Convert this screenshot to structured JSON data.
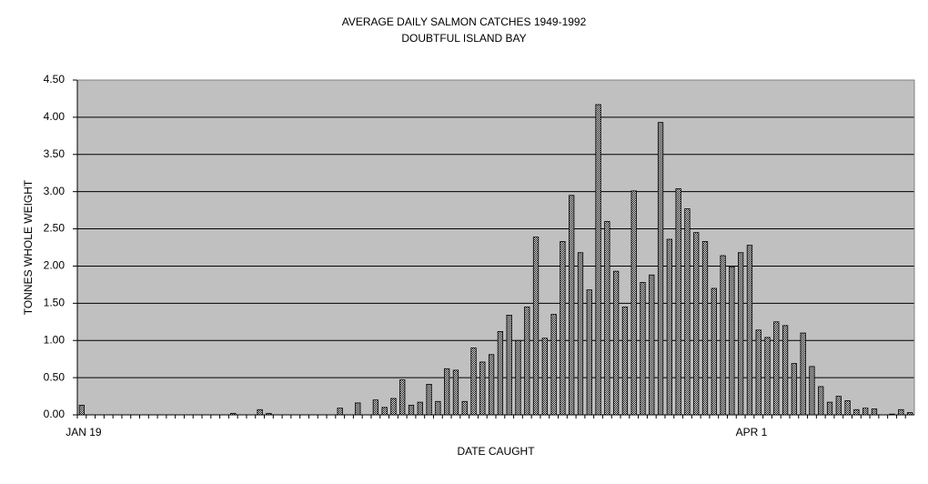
{
  "chart_data": {
    "type": "bar",
    "title": "AVERAGE DAILY SALMON CATCHES 1949-1992",
    "subtitle": "DOUBTFUL ISLAND BAY",
    "x_label": "DATE CAUGHT",
    "y_label": "TONNES WHOLE WEIGHT",
    "categories": [
      "JAN 19",
      null,
      null,
      null,
      null,
      null,
      null,
      null,
      null,
      null,
      null,
      null,
      null,
      null,
      null,
      null,
      null,
      null,
      null,
      null,
      null,
      null,
      null,
      null,
      null,
      null,
      null,
      null,
      null,
      null,
      null,
      null,
      null,
      null,
      null,
      null,
      null,
      null,
      null,
      null,
      null,
      null,
      null,
      null,
      null,
      null,
      null,
      null,
      null,
      null,
      null,
      null,
      null,
      null,
      null,
      null,
      null,
      null,
      null,
      null,
      null,
      null,
      null,
      null,
      null,
      null,
      null,
      null,
      null,
      null,
      null,
      null,
      null,
      null,
      null,
      "APR 1",
      null,
      null,
      null,
      null,
      null,
      null,
      null,
      null,
      null,
      null,
      null,
      null,
      null,
      null,
      null,
      null,
      null,
      null
    ],
    "values": [
      0.13,
      0,
      0,
      0,
      0,
      0,
      0,
      0,
      0,
      0,
      0,
      0,
      0,
      0,
      0,
      0,
      0,
      0.02,
      0,
      0,
      0.07,
      0.02,
      0,
      0,
      0,
      0,
      0,
      0,
      0,
      0.09,
      0,
      0.16,
      0,
      0.2,
      0.1,
      0.22,
      0.47,
      0.13,
      0.17,
      0.41,
      0.18,
      0.62,
      0.6,
      0.18,
      0.9,
      0.71,
      0.81,
      1.12,
      1.34,
      1.0,
      1.45,
      2.39,
      1.03,
      1.35,
      2.33,
      2.95,
      2.18,
      1.68,
      4.17,
      2.6,
      1.93,
      1.45,
      3.01,
      1.78,
      1.88,
      3.93,
      2.36,
      3.04,
      2.77,
      2.45,
      2.33,
      1.7,
      2.14,
      1.99,
      2.18,
      2.28,
      1.14,
      1.04,
      1.25,
      1.2,
      0.69,
      1.1,
      0.65,
      0.38,
      0.17,
      0.25,
      0.19,
      0.07,
      0.09,
      0.08,
      0,
      0.01,
      0.07,
      0.03
    ],
    "color": "#000000",
    "ylim": [
      0,
      4.5
    ],
    "yticks": [
      {
        "value": 0,
        "label": "0.00"
      },
      {
        "value": 0.5,
        "label": "0.50"
      },
      {
        "value": 1,
        "label": "1.00"
      },
      {
        "value": 1.5,
        "label": "1.50"
      },
      {
        "value": 2,
        "label": "2.00"
      },
      {
        "value": 2.5,
        "label": "2.50"
      },
      {
        "value": 3,
        "label": "3.00"
      },
      {
        "value": 3.5,
        "label": "3.50"
      },
      {
        "value": 4,
        "label": "4.00"
      },
      {
        "value": 4.5,
        "label": "4.50"
      }
    ],
    "grid": true
  }
}
